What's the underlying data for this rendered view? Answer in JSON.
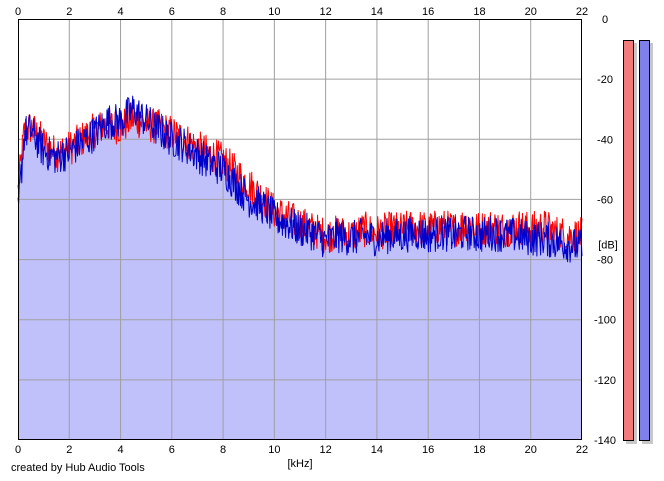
{
  "credit": "created by Hub Audio Tools",
  "colors": {
    "fill": "#c0c0fb",
    "left_channel": "#ff0000",
    "right_channel": "#0000cc",
    "grid": "#a0a0a0",
    "meter_left": "#f27a7a",
    "meter_right": "#8080ec"
  },
  "meters": {
    "left_level_db": -6,
    "right_level_db": -6
  },
  "chart_data": {
    "type": "line",
    "title": "",
    "xlabel": "[kHz]",
    "ylabel": "[dB]",
    "xlim": [
      0,
      22
    ],
    "ylim": [
      -140,
      0
    ],
    "x_ticks": [
      "0",
      "2",
      "4",
      "6",
      "8",
      "10",
      "12",
      "14",
      "16",
      "18",
      "20",
      "22"
    ],
    "y_ticks": [
      "0",
      "-20",
      "-40",
      "-60",
      "-80",
      "-100",
      "-120",
      "-140"
    ],
    "grid": true,
    "filled_area": true,
    "series": [
      {
        "channel": "left",
        "color": "#ff0000",
        "x": [
          0,
          0.25,
          0.5,
          1,
          1.5,
          2,
          2.5,
          3,
          3.5,
          4,
          4.5,
          5,
          5.5,
          6,
          6.5,
          7,
          7.5,
          8,
          8.5,
          9,
          9.5,
          10,
          10.5,
          11,
          11.5,
          12,
          12.5,
          13,
          13.5,
          14,
          14.5,
          15,
          15.5,
          16,
          16.5,
          17,
          17.5,
          18,
          18.5,
          19,
          19.5,
          20,
          20.5,
          21,
          21.5,
          22
        ],
        "y": [
          -57,
          -37,
          -36,
          -41,
          -45,
          -43,
          -40,
          -37,
          -35,
          -36,
          -33,
          -35,
          -36,
          -38,
          -40,
          -43,
          -45,
          -47,
          -51,
          -55,
          -59,
          -64,
          -66,
          -68,
          -70,
          -72,
          -71,
          -72,
          -70,
          -71,
          -70,
          -70,
          -69,
          -70,
          -69,
          -70,
          -68,
          -70,
          -69,
          -70,
          -69,
          -70,
          -69,
          -71,
          -72,
          -72
        ]
      },
      {
        "channel": "right",
        "color": "#0000cc",
        "x": [
          0,
          0.25,
          0.5,
          1,
          1.5,
          2,
          2.5,
          3,
          3.5,
          4,
          4.5,
          5,
          5.5,
          6,
          6.5,
          7,
          7.5,
          8,
          8.5,
          9,
          9.5,
          10,
          10.5,
          11,
          11.5,
          12,
          12.5,
          13,
          13.5,
          14,
          14.5,
          15,
          15.5,
          16,
          16.5,
          17,
          17.5,
          18,
          18.5,
          19,
          19.5,
          20,
          20.5,
          21,
          21.5,
          22
        ],
        "y": [
          -65,
          -38,
          -37,
          -44,
          -46,
          -44,
          -41,
          -38,
          -34,
          -34,
          -30,
          -34,
          -37,
          -40,
          -42,
          -45,
          -48,
          -50,
          -55,
          -60,
          -62,
          -66,
          -68,
          -70,
          -71,
          -74,
          -72,
          -73,
          -72,
          -73,
          -72,
          -72,
          -71,
          -72,
          -71,
          -72,
          -71,
          -72,
          -71,
          -72,
          -72,
          -73,
          -73,
          -74,
          -75,
          -76
        ]
      }
    ]
  }
}
